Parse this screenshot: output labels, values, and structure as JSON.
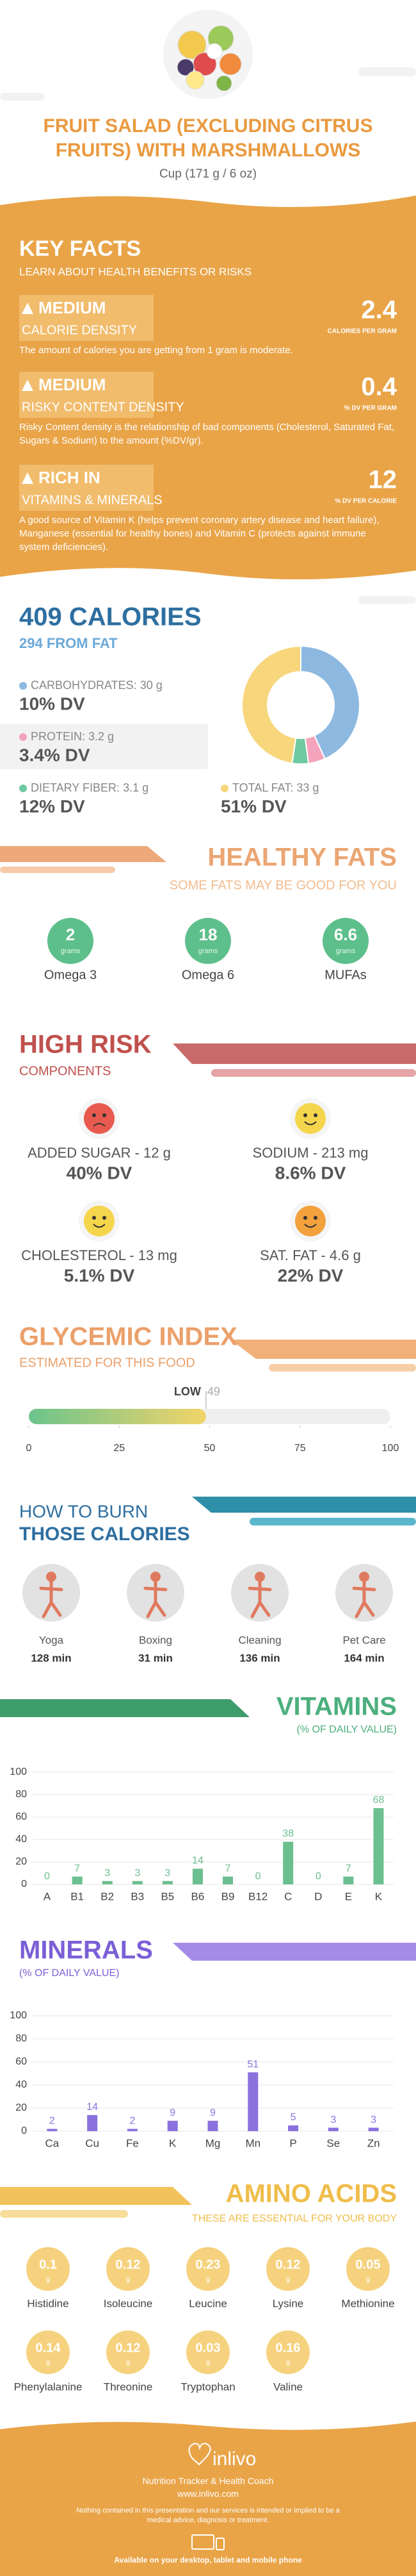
{
  "header": {
    "title": "FRUIT SALAD (EXCLUDING CITRUS FRUITS) WITH MARSHMALLOWS",
    "subtitle": "Cup (171 g / 6 oz)"
  },
  "key_facts": {
    "title": "KEY FACTS",
    "subtitle": "LEARN ABOUT HEALTH BENEFITS OR RISKS",
    "facts": [
      {
        "level": "MEDIUM",
        "label": "CALORIE DENSITY",
        "value": "2.4",
        "unit": "CALORIES PER GRAM",
        "description": "The amount of calories you are getting from 1 gram is moderate."
      },
      {
        "level": "MEDIUM",
        "label": "RISKY CONTENT DENSITY",
        "value": "0.4",
        "unit": "% DV PER GRAM",
        "description": "Risky Content density is the relationship of bad components (Cholesterol, Saturated Fat, Sugars & Sodium) to the amount (%DV/gr)."
      },
      {
        "level": "RICH IN",
        "label": "VITAMINS & MINERALS",
        "value": "12",
        "unit": "% DV PER CALORIE",
        "description": "A good source of Vitamin K (helps prevent coronary artery disease and heart failure), Manganese (essential for healthy bones) and Vitamin C (protects against immune system deficiencies)."
      }
    ]
  },
  "chart_data": [
    {
      "type": "pie",
      "title": "409 CALORIES",
      "subtitle": "294 FROM FAT",
      "categories": [
        "CARBOHYDRATES",
        "PROTEIN",
        "DIETARY FIBER",
        "TOTAL FAT"
      ],
      "values": [
        30,
        3.2,
        3.1,
        33
      ],
      "value_labels": [
        "30 g",
        "3.2 g",
        "3.1 g",
        "33 g"
      ],
      "dv": [
        "10% DV",
        "3.4% DV",
        "12% DV",
        "51% DV"
      ],
      "colors": [
        "#8db9e1",
        "#f3a3bb",
        "#6fc9a1",
        "#f7d67c"
      ]
    },
    {
      "type": "gauge",
      "title": "GLYCEMIC INDEX",
      "subtitle": "ESTIMATED FOR THIS FOOD",
      "value": 49,
      "label": "LOW",
      "xlim": [
        0,
        100
      ],
      "xticks": [
        0,
        25,
        50,
        75,
        100
      ]
    },
    {
      "type": "bar",
      "title": "VITAMINS",
      "subtitle": "(% OF DAILY VALUE)",
      "color": "#6cbf8f",
      "categories": [
        "A",
        "B1",
        "B2",
        "B3",
        "B5",
        "B6",
        "B9",
        "B12",
        "C",
        "D",
        "E",
        "K"
      ],
      "values": [
        0,
        7,
        3,
        3,
        3,
        14,
        7,
        0,
        38,
        0,
        7,
        68
      ],
      "ylim": [
        0,
        100
      ],
      "yticks": [
        0,
        20,
        40,
        60,
        80,
        100
      ],
      "grid": true
    },
    {
      "type": "bar",
      "title": "MINERALS",
      "subtitle": "(% OF DAILY VALUE)",
      "color": "#8a72de",
      "categories": [
        "Ca",
        "Cu",
        "Fe",
        "K",
        "Mg",
        "Mn",
        "P",
        "Se",
        "Zn"
      ],
      "values": [
        2,
        14,
        2,
        9,
        9,
        51,
        5,
        3,
        3
      ],
      "ylim": [
        0,
        100
      ],
      "yticks": [
        0,
        20,
        40,
        60,
        80,
        100
      ],
      "grid": true
    }
  ],
  "healthy_fats": {
    "title": "HEALTHY FATS",
    "subtitle": "SOME FATS MAY BE GOOD FOR YOU",
    "items": [
      {
        "value": "2",
        "unit": "grams",
        "name": "Omega 3"
      },
      {
        "value": "18",
        "unit": "grams",
        "name": "Omega 6"
      },
      {
        "value": "6.6",
        "unit": "grams",
        "name": "MUFAs"
      }
    ]
  },
  "high_risk": {
    "title": "HIGH RISK",
    "subtitle": "COMPONENTS",
    "items": [
      {
        "label": "ADDED SUGAR - 12 g",
        "dv": "40% DV"
      },
      {
        "label": "SODIUM - 213 mg",
        "dv": "8.6% DV"
      },
      {
        "label": "CHOLESTEROL - 13 mg",
        "dv": "5.1% DV"
      },
      {
        "label": "SAT. FAT - 4.6 g",
        "dv": "22% DV"
      }
    ]
  },
  "burn": {
    "title_1": "HOW TO BURN",
    "title_2": "THOSE CALORIES",
    "items": [
      {
        "name": "Yoga",
        "time": "128 min"
      },
      {
        "name": "Boxing",
        "time": "31 min"
      },
      {
        "name": "Cleaning",
        "time": "136 min"
      },
      {
        "name": "Pet Care",
        "time": "164 min"
      }
    ]
  },
  "amino_acids": {
    "title": "AMINO ACIDS",
    "subtitle": "THESE ARE ESSENTIAL FOR YOUR BODY",
    "items": [
      {
        "name": "Histidine",
        "value": "0.1",
        "unit": "g"
      },
      {
        "name": "Isoleucine",
        "value": "0.12",
        "unit": "g"
      },
      {
        "name": "Leucine",
        "value": "0.23",
        "unit": "g"
      },
      {
        "name": "Lysine",
        "value": "0.12",
        "unit": "g"
      },
      {
        "name": "Methionine",
        "value": "0.05",
        "unit": "g"
      },
      {
        "name": "Phenylalanine",
        "value": "0.14",
        "unit": "g"
      },
      {
        "name": "Threonine",
        "value": "0.12",
        "unit": "g"
      },
      {
        "name": "Tryptophan",
        "value": "0.03",
        "unit": "g"
      },
      {
        "name": "Valine",
        "value": "0.16",
        "unit": "g"
      }
    ]
  },
  "footer": {
    "brand": "inlivo",
    "tagline": "Nutrition Tracker & Health Coach",
    "url": "www.inlivo.com",
    "disclaimer": "Nothing contained in this presentation and our services is intended or implied to be a medical advice, diagnosis or treatment.",
    "available": "Available on your desktop, tablet and mobile phone"
  }
}
